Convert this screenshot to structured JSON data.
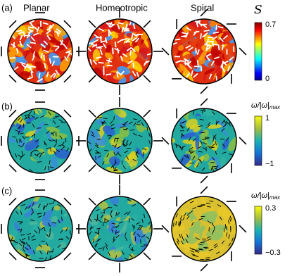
{
  "panels": [
    {
      "label": "(a)",
      "colorbar": {
        "title": "S",
        "top": "0.7",
        "bottom": "0"
      }
    },
    {
      "label": "(b)",
      "colorbar": {
        "title": "ω/|ω|",
        "subscript": "max",
        "top": "1",
        "bottom": "−1"
      }
    },
    {
      "label": "(c)",
      "colorbar": {
        "title": "ω/|ω|",
        "subscript": "max",
        "top": "0.3",
        "bottom": "−0.3"
      }
    }
  ],
  "columns": [
    "Planar",
    "Homeotropic",
    "Spiral"
  ]
}
